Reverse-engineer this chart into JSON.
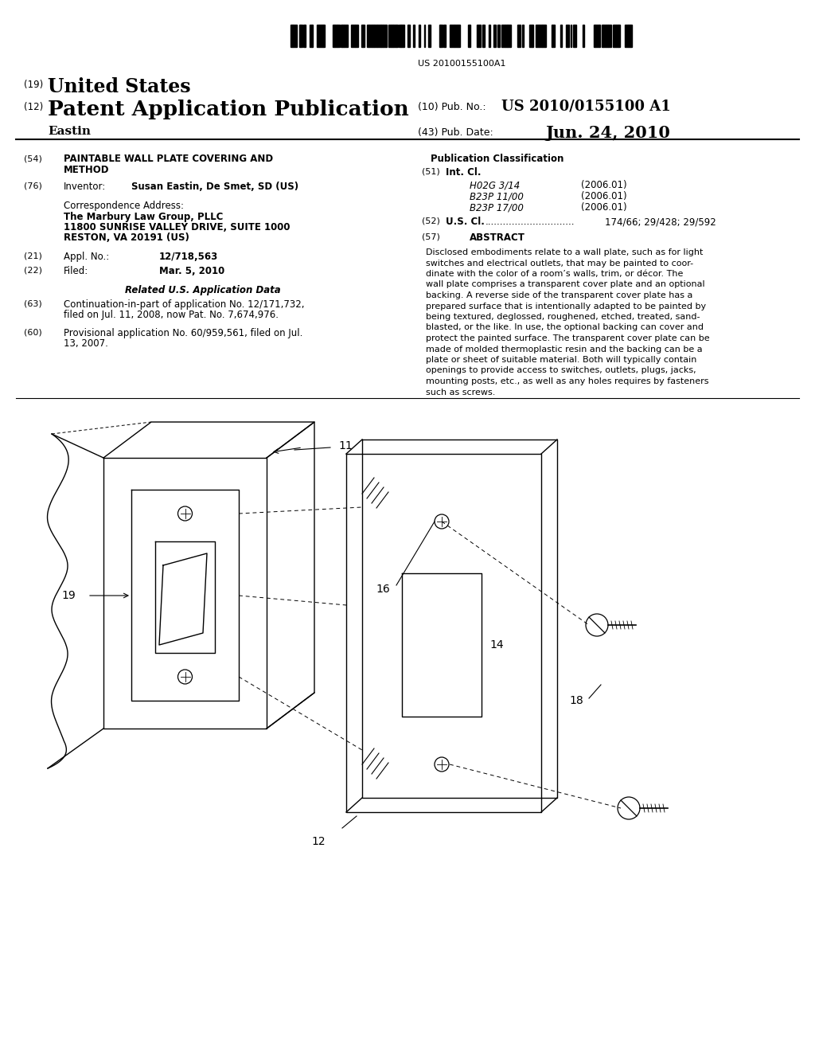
{
  "background_color": "#ffffff",
  "barcode_text": "US 20100155100A1",
  "title_19_super": "(19)",
  "title_19_text": "United States",
  "title_12_super": "(12)",
  "title_12_text": "Patent Application Publication",
  "pub_no_label": "(10) Pub. No.:",
  "pub_no_value": "US 2010/0155100 A1",
  "pub_date_label": "(43) Pub. Date:",
  "pub_date_value": "Jun. 24, 2010",
  "inventor_name": "Eastin",
  "section54_num": "(54)",
  "section54_line1": "PAINTABLE WALL PLATE COVERING AND",
  "section54_line2": "METHOD",
  "section76_num": "(76)",
  "section76_label": "Inventor:",
  "section76_value": "Susan Eastin, De Smet, SD (US)",
  "corr_addr_label": "Correspondence Address:",
  "corr_addr_line1": "The Marbury Law Group, PLLC",
  "corr_addr_line2": "11800 SUNRISE VALLEY DRIVE, SUITE 1000",
  "corr_addr_line3": "RESTON, VA 20191 (US)",
  "section21_num": "(21)",
  "section21_label": "Appl. No.:",
  "section21_value": "12/718,563",
  "section22_num": "(22)",
  "section22_label": "Filed:",
  "section22_value": "Mar. 5, 2010",
  "related_title": "Related U.S. Application Data",
  "section63_num": "(63)",
  "section63_line1": "Continuation-in-part of application No. 12/171,732,",
  "section63_line2": "filed on Jul. 11, 2008, now Pat. No. 7,674,976.",
  "section60_num": "(60)",
  "section60_line1": "Provisional application No. 60/959,561, filed on Jul.",
  "section60_line2": "13, 2007.",
  "pub_class_title": "Publication Classification",
  "section51_num": "(51)",
  "section51_label": "Int. Cl.",
  "class1_name": "H02G 3/14",
  "class1_year": "(2006.01)",
  "class2_name": "B23P 11/00",
  "class2_year": "(2006.01)",
  "class3_name": "B23P 17/00",
  "class3_year": "(2006.01)",
  "section52_num": "(52)",
  "section52_label": "U.S. Cl.",
  "section52_dots": "..............................",
  "section52_value": "174/66; 29/428; 29/592",
  "section57_num": "(57)",
  "section57_title": "ABSTRACT",
  "abstract_lines": [
    "Disclosed embodiments relate to a wall plate, such as for light",
    "switches and electrical outlets, that may be painted to coor-",
    "dinate with the color of a room’s walls, trim, or décor. The",
    "wall plate comprises a transparent cover plate and an optional",
    "backing. A reverse side of the transparent cover plate has a",
    "prepared surface that is intentionally adapted to be painted by",
    "being textured, deglossed, roughened, etched, treated, sand-",
    "blasted, or the like. In use, the optional backing can cover and",
    "protect the painted surface. The transparent cover plate can be",
    "made of molded thermoplastic resin and the backing can be a",
    "plate or sheet of suitable material. Both will typically contain",
    "openings to provide access to switches, outlets, plugs, jacks,",
    "mounting posts, etc., as well as any holes requires by fasteners",
    "such as screws."
  ]
}
